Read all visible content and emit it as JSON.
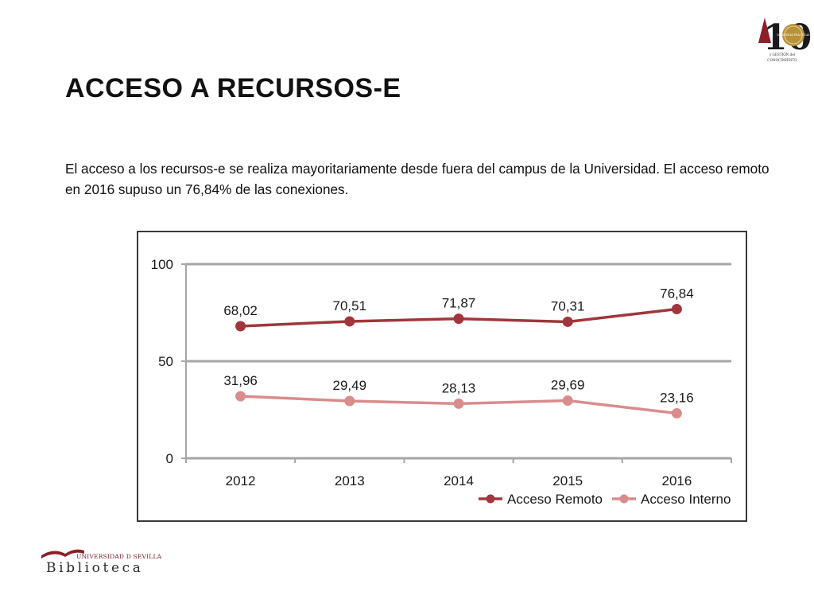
{
  "slide": {
    "title": "ACCESO A RECURSOS-E",
    "paragraph": "El acceso a los recursos-e se realiza mayoritariamente desde fuera del campus de la Universidad. El acceso remoto en 2016 supuso un 76,84% de las conexiones."
  },
  "logos": {
    "anniversary_number": "10",
    "anniversary_seal_text": "DE BUENAS PRÁCTICAS",
    "anniversary_caption_line1": "y GESTIÓN del",
    "anniversary_caption_line2": "CONOCIMIENTO",
    "library_university": "UNIVERSIDAD D SEVILLA",
    "library_name": "Biblioteca"
  },
  "colors": {
    "remote": "#a0363b",
    "internal": "#d98c8c",
    "accent": "#8c1f28"
  },
  "chart_data": {
    "type": "line",
    "categories": [
      "2012",
      "2013",
      "2014",
      "2015",
      "2016"
    ],
    "series": [
      {
        "name": "Acceso Remoto",
        "values": [
          68.02,
          70.51,
          71.87,
          70.31,
          76.84
        ],
        "labels": [
          "68,02",
          "70,51",
          "71,87",
          "70,31",
          "76,84"
        ]
      },
      {
        "name": "Acceso Interno",
        "values": [
          31.96,
          29.49,
          28.13,
          29.69,
          23.16
        ],
        "labels": [
          "31,96",
          "29,49",
          "28,13",
          "29,69",
          "23,16"
        ]
      }
    ],
    "yticks": [
      "0",
      "50",
      "100"
    ],
    "ylim": [
      0,
      100
    ],
    "grid": true,
    "legend_position": "bottom-right"
  }
}
